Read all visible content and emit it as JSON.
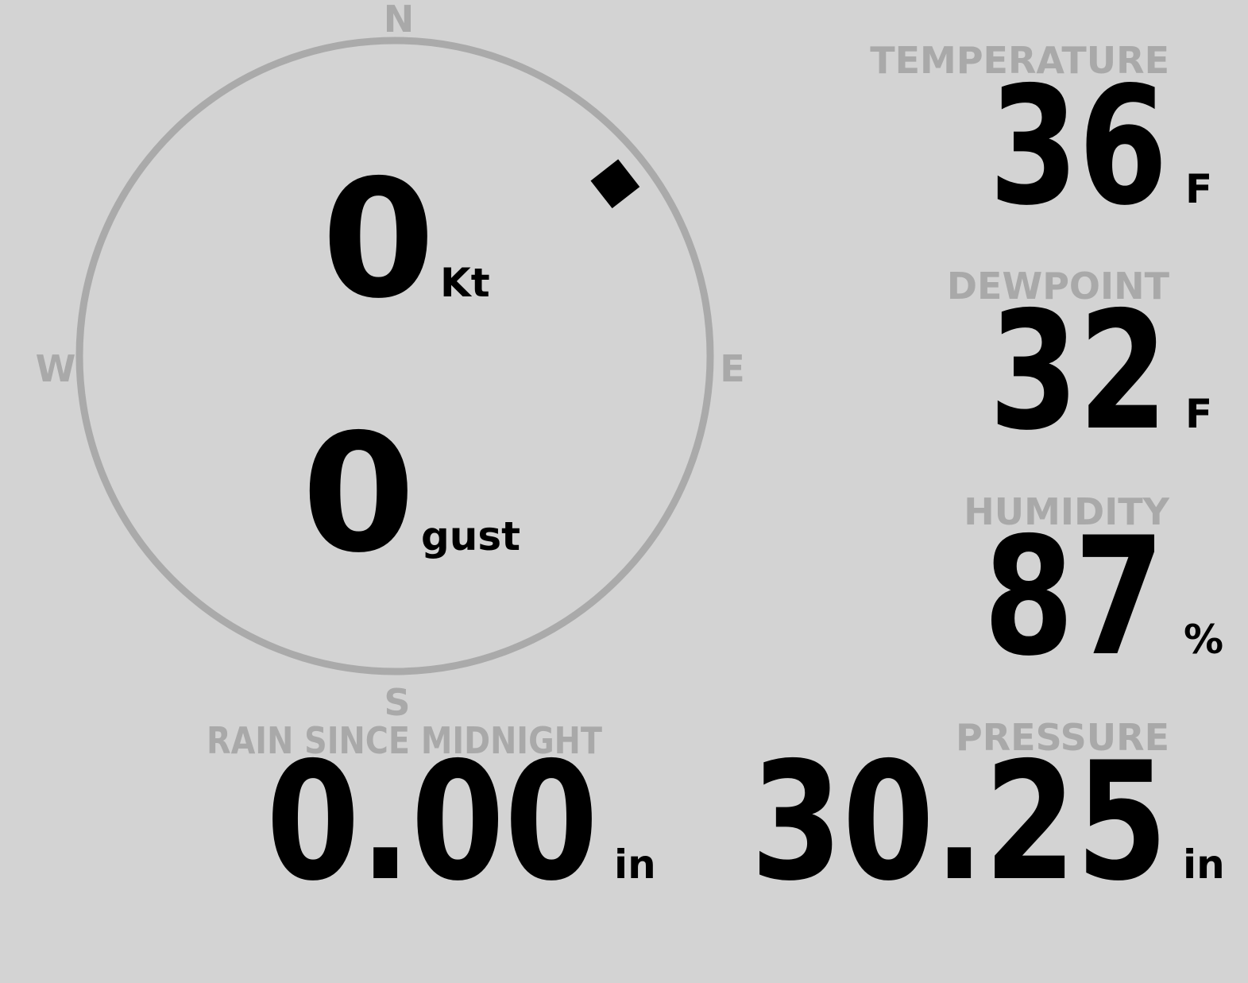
{
  "compass": {
    "north": "N",
    "east": "E",
    "south": "S",
    "west": "W"
  },
  "wind": {
    "speed": 0,
    "speed_unit": "Kt",
    "gust": 0,
    "gust_unit": "gust",
    "direction": 52
  },
  "temperature": {
    "label": "TEMPERATURE",
    "value": 36,
    "unit": "F"
  },
  "dewpoint": {
    "label": "DEWPOINT",
    "value": 32,
    "unit": "F"
  },
  "humidity": {
    "label": "HUMIDITY",
    "value": 87,
    "unit": "%"
  },
  "rain": {
    "label": "RAIN SINCE MIDNIGHT",
    "value": "0.00",
    "unit": "in"
  },
  "pressure": {
    "label": "PRESSURE",
    "value": 30.25,
    "unit": "in"
  }
}
